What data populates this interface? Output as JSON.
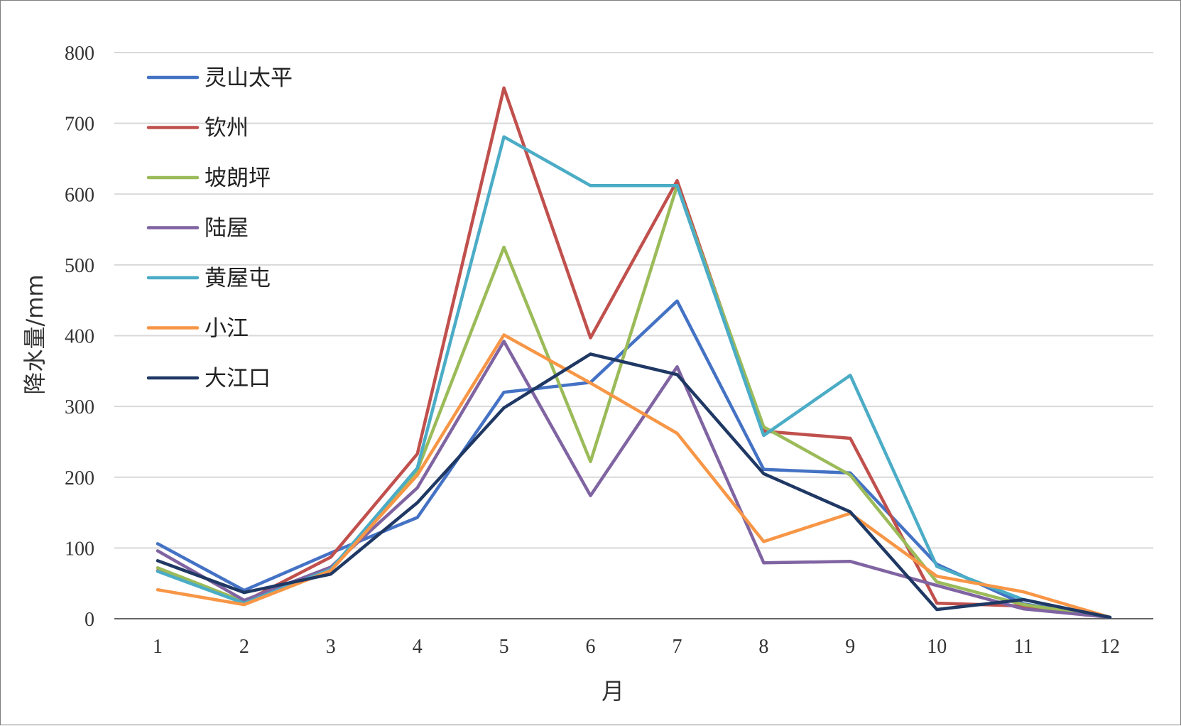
{
  "chart_data": {
    "type": "line",
    "xlabel": "月",
    "ylabel": "降水量/mm",
    "ylim": [
      0,
      800
    ],
    "yticks": [
      0,
      100,
      200,
      300,
      400,
      500,
      600,
      700,
      800
    ],
    "categories": [
      "1",
      "2",
      "3",
      "4",
      "5",
      "6",
      "7",
      "8",
      "9",
      "10",
      "11",
      "12"
    ],
    "grid": "horizontal",
    "legend_position": "top-left",
    "series": [
      {
        "name": "灵山太平",
        "color": "#4472c4",
        "values": [
          106,
          40,
          93,
          143,
          320,
          334,
          449,
          211,
          206,
          77,
          21,
          2
        ]
      },
      {
        "name": "钦州",
        "color": "#c0504d",
        "values": [
          68,
          24,
          87,
          233,
          750,
          397,
          619,
          265,
          255,
          22,
          18,
          2
        ]
      },
      {
        "name": "坡朗坪",
        "color": "#9bbb59",
        "values": [
          72,
          24,
          70,
          210,
          525,
          222,
          612,
          271,
          203,
          52,
          20,
          2
        ]
      },
      {
        "name": "陆屋",
        "color": "#8064a2",
        "values": [
          96,
          26,
          73,
          185,
          392,
          174,
          356,
          79,
          81,
          47,
          14,
          2
        ]
      },
      {
        "name": "黄屋屯",
        "color": "#4bacc6",
        "values": [
          67,
          22,
          70,
          213,
          681,
          612,
          612,
          259,
          344,
          74,
          27,
          2
        ]
      },
      {
        "name": "小江",
        "color": "#f79646",
        "values": [
          41,
          20,
          68,
          203,
          401,
          333,
          262,
          109,
          149,
          60,
          38,
          2
        ]
      },
      {
        "name": "大江口",
        "color": "#1f3864",
        "values": [
          82,
          37,
          63,
          164,
          298,
          374,
          345,
          205,
          151,
          13,
          27,
          2
        ]
      }
    ]
  }
}
